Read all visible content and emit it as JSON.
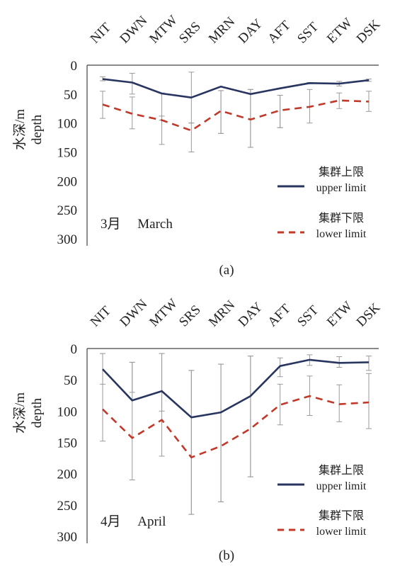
{
  "colors": {
    "upper": "#27355f",
    "lower": "#c0392b",
    "errorbar": "#9a9a9a",
    "axis": "#444444"
  },
  "chart_data": [
    {
      "type": "line",
      "panel_caption": "(a)",
      "month_label": "3月　 March",
      "categories": [
        "NIT",
        "DWN",
        "MTW",
        "SRS",
        "MRN",
        "DAY",
        "AFT",
        "SST",
        "ETW",
        "DSK"
      ],
      "ylabel_cn": "水深/m",
      "ylabel_en": "depth",
      "ylim": [
        0,
        300
      ],
      "y_inverted": true,
      "yticks": [
        "0",
        "50",
        "100",
        "150",
        "200",
        "250",
        "300"
      ],
      "legend_position": "right",
      "series": [
        {
          "name_cn": "集群上限",
          "name_en": "upper limit",
          "style": "solid",
          "values": [
            24,
            30,
            49,
            56,
            37,
            50,
            40,
            31,
            32,
            26
          ],
          "err_low": [
            20,
            50,
            137,
            100,
            118,
            142,
            108,
            32,
            36,
            28
          ],
          "err_high": [
            27,
            14,
            48,
            12,
            44,
            42,
            52,
            30,
            28,
            24
          ]
        },
        {
          "name_cn": "集群下限",
          "name_en": "lower limit",
          "style": "dashed",
          "values": [
            68,
            84,
            95,
            113,
            79,
            94,
            78,
            72,
            61,
            63
          ],
          "err_low": [
            92,
            110,
            88,
            150,
            118,
            142,
            108,
            100,
            75,
            80
          ],
          "err_high": [
            45,
            55,
            95,
            100,
            44,
            42,
            52,
            42,
            48,
            45
          ]
        }
      ]
    },
    {
      "type": "line",
      "panel_caption": "(b)",
      "month_label": "4月　 April",
      "categories": [
        "NIT",
        "DWN",
        "MTW",
        "SRS",
        "MRN",
        "DAY",
        "AFT",
        "SST",
        "ETW",
        "DSK"
      ],
      "ylabel_cn": "水深/m",
      "ylabel_en": "depth",
      "ylim": [
        0,
        300
      ],
      "y_inverted": true,
      "yticks": [
        "0",
        "50",
        "100",
        "150",
        "200",
        "250",
        "300"
      ],
      "legend_position": "right",
      "series": [
        {
          "name_cn": "集群上限",
          "name_en": "upper limit",
          "style": "solid",
          "values": [
            33,
            83,
            68,
            110,
            102,
            76,
            28,
            18,
            23,
            22
          ],
          "err_low": [
            8,
            22,
            8,
            35,
            25,
            12,
            15,
            10,
            13,
            12
          ],
          "err_high": [
            57,
            70,
            100,
            265,
            245,
            205,
            45,
            27,
            30,
            35
          ]
        },
        {
          "name_cn": "集群下限",
          "name_en": "lower limit",
          "style": "dashed",
          "values": [
            97,
            143,
            114,
            174,
            156,
            128,
            90,
            76,
            89,
            86
          ],
          "err_low": [
            8,
            22,
            8,
            35,
            25,
            12,
            57,
            44,
            58,
            40
          ],
          "err_high": [
            148,
            210,
            172,
            265,
            245,
            205,
            122,
            107,
            117,
            128
          ]
        }
      ]
    }
  ]
}
